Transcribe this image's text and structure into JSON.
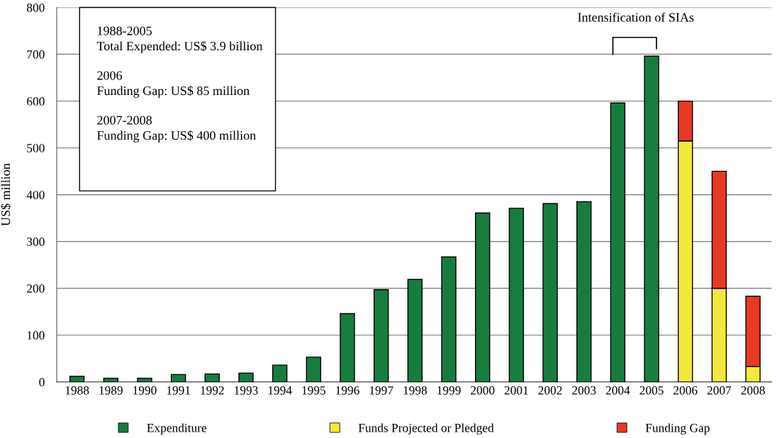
{
  "chart_data": {
    "type": "bar",
    "stacked": true,
    "ylabel": "US$ million",
    "categories": [
      "1988",
      "1989",
      "1990",
      "1991",
      "1992",
      "1993",
      "1994",
      "1995",
      "1996",
      "1997",
      "1998",
      "1999",
      "2000",
      "2001",
      "2002",
      "2003",
      "2004",
      "2005",
      "2006",
      "2007",
      "2008"
    ],
    "series": [
      {
        "name": "Expenditure",
        "color": "#187c3e",
        "values": [
          12,
          8,
          8,
          16,
          17,
          19,
          36,
          53,
          146,
          197,
          219,
          267,
          361,
          371,
          381,
          385,
          596,
          696,
          null,
          null,
          null
        ]
      },
      {
        "name": "Funds Projected or Pledged",
        "color": "#f2e93a",
        "values": [
          null,
          null,
          null,
          null,
          null,
          null,
          null,
          null,
          null,
          null,
          null,
          null,
          null,
          null,
          null,
          null,
          null,
          null,
          515,
          200,
          33
        ]
      },
      {
        "name": "Funding Gap",
        "color": "#e63a24",
        "values": [
          null,
          null,
          null,
          null,
          null,
          null,
          null,
          null,
          null,
          null,
          null,
          null,
          null,
          null,
          null,
          null,
          null,
          null,
          85,
          250,
          150
        ]
      }
    ],
    "ylim": [
      0,
      800
    ],
    "yticks": [
      0,
      100,
      200,
      300,
      400,
      500,
      600,
      700,
      800
    ],
    "grid": "y",
    "legend": "bottom",
    "annotations": [
      "1988-2005\nTotal Expended: US$ 3.9 billion\n\n2006\nFunding Gap: US$ 85 million\n\n2007-2008\nFunding Gap: US$ 400 million",
      "Intensification of SIAs"
    ]
  }
}
